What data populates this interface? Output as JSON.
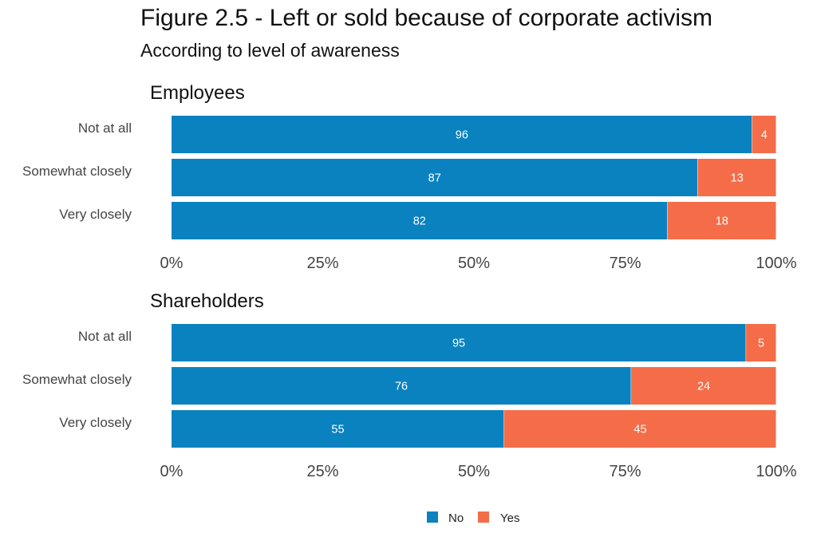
{
  "title": "Figure 2.5 - Left or sold because of corporate activism",
  "subtitle": "According to level of awareness",
  "colors": {
    "No": "#0a82bf",
    "Yes": "#f46d48"
  },
  "chart_data": {
    "type": "bar",
    "orientation": "horizontal",
    "stacked": true,
    "xlim": [
      0,
      100
    ],
    "ticks": [
      "0%",
      "25%",
      "50%",
      "75%",
      "100%"
    ],
    "tick_values": [
      0,
      25,
      50,
      75,
      100
    ],
    "legend": {
      "position": "bottom",
      "entries": [
        "No",
        "Yes"
      ]
    },
    "panels": [
      {
        "title": "Employees",
        "categories": [
          "Not at all",
          "Somewhat closely",
          "Very closely"
        ],
        "series": [
          {
            "name": "No",
            "values": [
              96,
              87,
              82
            ]
          },
          {
            "name": "Yes",
            "values": [
              4,
              13,
              18
            ]
          }
        ]
      },
      {
        "title": "Shareholders",
        "categories": [
          "Not at all",
          "Somewhat closely",
          "Very closely"
        ],
        "series": [
          {
            "name": "No",
            "values": [
              95,
              76,
              55
            ]
          },
          {
            "name": "Yes",
            "values": [
              5,
              24,
              45
            ]
          }
        ]
      }
    ]
  }
}
